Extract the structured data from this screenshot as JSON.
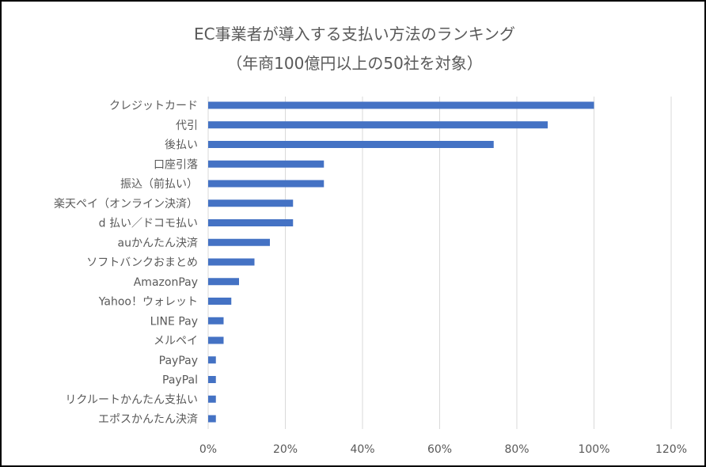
{
  "chart_data": {
    "type": "bar",
    "orientation": "horizontal",
    "title": "EC事業者が導入する支払い方法のランキング",
    "subtitle": "（年商100億円以上の50社を対象）",
    "categories": [
      "クレジットカード",
      "代引",
      "後払い",
      "口座引落",
      "振込（前払い）",
      "楽天ペイ（オンライン決済）",
      "d 払い／ドコモ払い",
      "auかんたん決済",
      "ソフトバンクおまとめ",
      "AmazonPay",
      "Yahoo！ウォレット",
      "LINE Pay",
      "メルペイ",
      "PayPay",
      "PayPal",
      "リクルートかんたん支払い",
      "エポスかんたん決済"
    ],
    "values": [
      100,
      88,
      74,
      30,
      30,
      22,
      22,
      16,
      12,
      8,
      6,
      4,
      4,
      2,
      2,
      2,
      2
    ],
    "unit": "%",
    "xlim": [
      0,
      120
    ],
    "xticks": [
      "0%",
      "20%",
      "40%",
      "60%",
      "80%",
      "100%",
      "120%"
    ],
    "grid": true,
    "legend": "none",
    "bar_color": "#4472C4",
    "grid_color": "#D9D9D9",
    "text_color": "#595959"
  }
}
